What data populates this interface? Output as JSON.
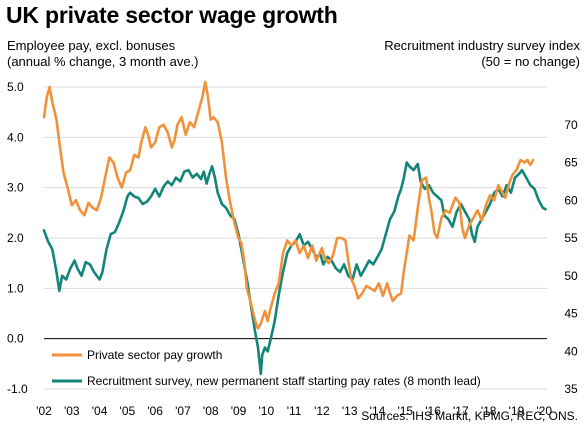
{
  "title": "UK private sector wage growth",
  "left_axis_label": "Employee pay, excl. bonuses\n(annual % change, 3 month ave.)",
  "right_axis_label": "Recruitment industry survey index\n(50 = no change)",
  "source": "Sources: IHS Markit, KPMG, REC, ONS.",
  "colors": {
    "pay": "#f0923a",
    "recruit": "#138579",
    "grid": "#d9d9d9",
    "axis": "#000000"
  },
  "chart_data": {
    "type": "line",
    "x_range": [
      2002.0,
      2020.1
    ],
    "x_ticks": [
      "'02",
      "'03",
      "'04",
      "'05",
      "'06",
      "'07",
      "'08",
      "'09",
      "'10",
      "'11",
      "'12",
      "'13",
      "'14",
      "'15",
      "'16",
      "'17",
      "'18",
      "'19",
      "'20"
    ],
    "y_left": {
      "range": [
        -1.0,
        5.0
      ],
      "ticks": [
        "-1.0",
        "0.0",
        "1.0",
        "2.0",
        "3.0",
        "4.0",
        "5.0"
      ]
    },
    "y_right": {
      "range": [
        35,
        75
      ],
      "ticks": [
        "35",
        "40",
        "45",
        "50",
        "55",
        "60",
        "65",
        "70"
      ]
    },
    "grid": "horizontal",
    "legend_position": "bottom-left",
    "series": [
      {
        "name": "Private sector pay growth",
        "axis": "left",
        "points": [
          [
            2002.0,
            4.4
          ],
          [
            2002.1,
            4.8
          ],
          [
            2002.2,
            5.0
          ],
          [
            2002.3,
            4.7
          ],
          [
            2002.45,
            4.35
          ],
          [
            2002.55,
            3.9
          ],
          [
            2002.7,
            3.3
          ],
          [
            2002.85,
            3.0
          ],
          [
            2003.0,
            2.65
          ],
          [
            2003.15,
            2.75
          ],
          [
            2003.3,
            2.55
          ],
          [
            2003.45,
            2.45
          ],
          [
            2003.6,
            2.7
          ],
          [
            2003.75,
            2.6
          ],
          [
            2003.9,
            2.55
          ],
          [
            2004.05,
            2.8
          ],
          [
            2004.2,
            3.2
          ],
          [
            2004.35,
            3.6
          ],
          [
            2004.5,
            3.5
          ],
          [
            2004.65,
            3.2
          ],
          [
            2004.8,
            3.0
          ],
          [
            2004.95,
            3.3
          ],
          [
            2005.1,
            3.35
          ],
          [
            2005.25,
            3.65
          ],
          [
            2005.4,
            3.6
          ],
          [
            2005.5,
            3.9
          ],
          [
            2005.65,
            4.2
          ],
          [
            2005.75,
            4.05
          ],
          [
            2005.85,
            3.8
          ],
          [
            2006.0,
            3.9
          ],
          [
            2006.15,
            4.2
          ],
          [
            2006.3,
            4.25
          ],
          [
            2006.45,
            4.1
          ],
          [
            2006.6,
            3.8
          ],
          [
            2006.7,
            3.95
          ],
          [
            2006.8,
            4.25
          ],
          [
            2006.95,
            4.4
          ],
          [
            2007.1,
            4.05
          ],
          [
            2007.25,
            4.3
          ],
          [
            2007.4,
            4.2
          ],
          [
            2007.55,
            4.5
          ],
          [
            2007.7,
            4.8
          ],
          [
            2007.8,
            5.1
          ],
          [
            2007.9,
            4.8
          ],
          [
            2008.0,
            4.35
          ],
          [
            2008.1,
            4.4
          ],
          [
            2008.25,
            4.3
          ],
          [
            2008.4,
            3.9
          ],
          [
            2008.55,
            3.2
          ],
          [
            2008.7,
            2.7
          ],
          [
            2008.85,
            2.3
          ],
          [
            2009.0,
            2.0
          ],
          [
            2009.1,
            1.9
          ],
          [
            2009.2,
            1.55
          ],
          [
            2009.3,
            1.0
          ],
          [
            2009.45,
            0.7
          ],
          [
            2009.6,
            0.35
          ],
          [
            2009.7,
            0.2
          ],
          [
            2009.8,
            0.3
          ],
          [
            2009.95,
            0.55
          ],
          [
            2010.05,
            0.35
          ],
          [
            2010.15,
            0.6
          ],
          [
            2010.3,
            0.9
          ],
          [
            2010.45,
            1.1
          ],
          [
            2010.6,
            1.7
          ],
          [
            2010.75,
            1.95
          ],
          [
            2010.9,
            1.85
          ],
          [
            2011.05,
            1.95
          ],
          [
            2011.2,
            1.7
          ],
          [
            2011.35,
            1.85
          ],
          [
            2011.5,
            1.6
          ],
          [
            2011.65,
            1.85
          ],
          [
            2011.8,
            1.55
          ],
          [
            2012.0,
            1.8
          ],
          [
            2012.1,
            1.6
          ],
          [
            2012.25,
            1.5
          ],
          [
            2012.4,
            1.65
          ],
          [
            2012.55,
            2.0
          ],
          [
            2012.7,
            2.0
          ],
          [
            2012.85,
            1.95
          ],
          [
            2012.95,
            1.55
          ],
          [
            2013.05,
            1.2
          ],
          [
            2013.2,
            1.0
          ],
          [
            2013.3,
            0.8
          ],
          [
            2013.45,
            0.9
          ],
          [
            2013.6,
            1.05
          ],
          [
            2013.75,
            1.0
          ],
          [
            2013.9,
            0.95
          ],
          [
            2014.05,
            1.1
          ],
          [
            2014.2,
            0.85
          ],
          [
            2014.35,
            1.1
          ],
          [
            2014.45,
            0.9
          ],
          [
            2014.55,
            0.75
          ],
          [
            2014.7,
            0.85
          ],
          [
            2014.85,
            0.9
          ],
          [
            2014.95,
            1.35
          ],
          [
            2015.05,
            1.7
          ],
          [
            2015.15,
            2.05
          ],
          [
            2015.3,
            1.95
          ],
          [
            2015.45,
            2.6
          ],
          [
            2015.6,
            3.15
          ],
          [
            2015.75,
            3.2
          ],
          [
            2015.85,
            2.8
          ],
          [
            2015.95,
            2.5
          ],
          [
            2016.05,
            2.1
          ],
          [
            2016.15,
            2.0
          ],
          [
            2016.3,
            2.4
          ],
          [
            2016.45,
            2.55
          ],
          [
            2016.6,
            2.5
          ],
          [
            2016.8,
            2.8
          ],
          [
            2016.95,
            2.7
          ],
          [
            2017.05,
            2.2
          ],
          [
            2017.15,
            2.0
          ],
          [
            2017.3,
            2.25
          ],
          [
            2017.45,
            2.4
          ],
          [
            2017.6,
            2.55
          ],
          [
            2017.75,
            2.35
          ],
          [
            2017.9,
            2.65
          ],
          [
            2018.05,
            2.85
          ],
          [
            2018.2,
            2.75
          ],
          [
            2018.35,
            3.05
          ],
          [
            2018.5,
            2.9
          ],
          [
            2018.6,
            2.8
          ],
          [
            2018.75,
            3.1
          ],
          [
            2018.85,
            3.25
          ],
          [
            2019.0,
            3.35
          ],
          [
            2019.15,
            3.55
          ],
          [
            2019.3,
            3.5
          ],
          [
            2019.4,
            3.55
          ],
          [
            2019.5,
            3.45
          ],
          [
            2019.6,
            3.55
          ]
        ]
      },
      {
        "name": "Recruitment survey, new permanent staff starting pay rates (8 month lead)",
        "axis": "right",
        "points": [
          [
            2002.0,
            56.0
          ],
          [
            2002.15,
            54.5
          ],
          [
            2002.3,
            53.5
          ],
          [
            2002.45,
            50.5
          ],
          [
            2002.55,
            48.0
          ],
          [
            2002.65,
            50.0
          ],
          [
            2002.8,
            49.5
          ],
          [
            2002.95,
            51.0
          ],
          [
            2003.1,
            52.0
          ],
          [
            2003.2,
            51.0
          ],
          [
            2003.35,
            50.0
          ],
          [
            2003.5,
            51.8
          ],
          [
            2003.65,
            51.5
          ],
          [
            2003.8,
            50.5
          ],
          [
            2004.0,
            49.5
          ],
          [
            2004.1,
            50.5
          ],
          [
            2004.25,
            53.5
          ],
          [
            2004.4,
            55.5
          ],
          [
            2004.55,
            55.8
          ],
          [
            2004.7,
            57.0
          ],
          [
            2004.85,
            58.5
          ],
          [
            2005.0,
            60.5
          ],
          [
            2005.1,
            61.0
          ],
          [
            2005.25,
            60.5
          ],
          [
            2005.4,
            60.3
          ],
          [
            2005.55,
            59.5
          ],
          [
            2005.7,
            59.8
          ],
          [
            2005.85,
            60.5
          ],
          [
            2006.0,
            61.5
          ],
          [
            2006.15,
            60.5
          ],
          [
            2006.3,
            61.8
          ],
          [
            2006.45,
            62.5
          ],
          [
            2006.6,
            62.0
          ],
          [
            2006.75,
            63.0
          ],
          [
            2006.9,
            62.5
          ],
          [
            2007.05,
            63.8
          ],
          [
            2007.2,
            64.0
          ],
          [
            2007.35,
            63.0
          ],
          [
            2007.5,
            63.5
          ],
          [
            2007.65,
            62.8
          ],
          [
            2007.75,
            63.8
          ],
          [
            2007.85,
            62.2
          ],
          [
            2007.95,
            63.5
          ],
          [
            2008.05,
            64.5
          ],
          [
            2008.15,
            63.0
          ],
          [
            2008.25,
            61.0
          ],
          [
            2008.4,
            59.5
          ],
          [
            2008.55,
            59.0
          ],
          [
            2008.7,
            58.0
          ],
          [
            2008.85,
            57.5
          ],
          [
            2009.0,
            55.5
          ],
          [
            2009.1,
            53.5
          ],
          [
            2009.2,
            51.5
          ],
          [
            2009.3,
            49.5
          ],
          [
            2009.45,
            46.0
          ],
          [
            2009.6,
            42.5
          ],
          [
            2009.7,
            40.5
          ],
          [
            2009.8,
            37.0
          ],
          [
            2009.85,
            39.5
          ],
          [
            2009.95,
            40.5
          ],
          [
            2010.05,
            40.0
          ],
          [
            2010.15,
            41.5
          ],
          [
            2010.3,
            44.0
          ],
          [
            2010.45,
            47.5
          ],
          [
            2010.6,
            50.5
          ],
          [
            2010.75,
            53.0
          ],
          [
            2010.9,
            54.0
          ],
          [
            2011.05,
            54.5
          ],
          [
            2011.2,
            55.5
          ],
          [
            2011.35,
            54.0
          ],
          [
            2011.5,
            54.5
          ],
          [
            2011.65,
            53.5
          ],
          [
            2011.8,
            52.5
          ],
          [
            2011.95,
            52.8
          ],
          [
            2012.05,
            51.5
          ],
          [
            2012.2,
            52.5
          ],
          [
            2012.35,
            52.0
          ],
          [
            2012.5,
            51.0
          ],
          [
            2012.65,
            50.5
          ],
          [
            2012.8,
            51.5
          ],
          [
            2012.95,
            50.0
          ],
          [
            2013.1,
            49.5
          ],
          [
            2013.25,
            51.5
          ],
          [
            2013.4,
            50.0
          ],
          [
            2013.55,
            51.0
          ],
          [
            2013.7,
            52.0
          ],
          [
            2013.85,
            51.5
          ],
          [
            2014.0,
            52.5
          ],
          [
            2014.15,
            53.5
          ],
          [
            2014.3,
            55.5
          ],
          [
            2014.45,
            57.5
          ],
          [
            2014.6,
            58.5
          ],
          [
            2014.75,
            60.5
          ],
          [
            2014.85,
            61.5
          ],
          [
            2014.95,
            63.0
          ],
          [
            2015.05,
            65.0
          ],
          [
            2015.15,
            64.5
          ],
          [
            2015.3,
            64.0
          ],
          [
            2015.45,
            64.8
          ],
          [
            2015.55,
            62.5
          ],
          [
            2015.7,
            61.5
          ],
          [
            2015.85,
            62.0
          ],
          [
            2016.0,
            61.0
          ],
          [
            2016.15,
            60.5
          ],
          [
            2016.3,
            60.0
          ],
          [
            2016.4,
            58.0
          ],
          [
            2016.55,
            57.5
          ],
          [
            2016.7,
            56.5
          ],
          [
            2016.85,
            58.5
          ],
          [
            2017.0,
            59.5
          ],
          [
            2017.15,
            58.5
          ],
          [
            2017.3,
            57.5
          ],
          [
            2017.4,
            55.5
          ],
          [
            2017.5,
            54.5
          ],
          [
            2017.6,
            56.5
          ],
          [
            2017.75,
            57.5
          ],
          [
            2017.9,
            58.5
          ],
          [
            2018.05,
            59.5
          ],
          [
            2018.2,
            61.0
          ],
          [
            2018.35,
            61.5
          ],
          [
            2018.5,
            60.5
          ],
          [
            2018.65,
            62.0
          ],
          [
            2018.8,
            61.0
          ],
          [
            2018.95,
            63.0
          ],
          [
            2019.1,
            63.5
          ],
          [
            2019.2,
            64.0
          ],
          [
            2019.35,
            63.0
          ],
          [
            2019.5,
            62.0
          ],
          [
            2019.65,
            61.5
          ],
          [
            2019.8,
            60.0
          ],
          [
            2019.95,
            59.0
          ],
          [
            2020.05,
            58.8
          ]
        ]
      }
    ]
  }
}
